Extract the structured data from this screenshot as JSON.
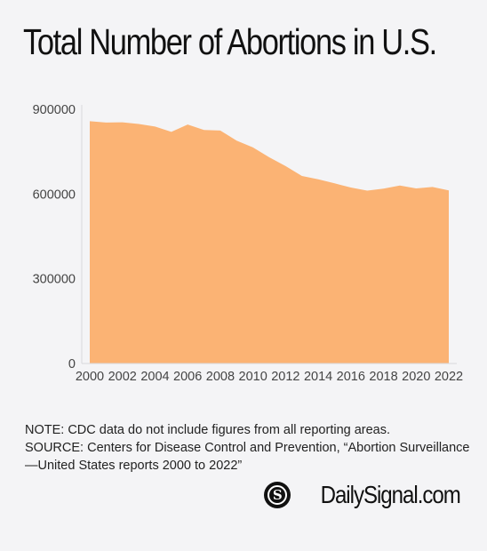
{
  "title": "Total Number of Abortions in U.S.",
  "colors": {
    "fill": "#fbb374",
    "background": "#f4f4f6",
    "text": "#111111"
  },
  "chart_data": {
    "type": "area",
    "title": "Total Number of Abortions in U.S.",
    "xlabel": "",
    "ylabel": "",
    "ylim": [
      0,
      900000
    ],
    "y_ticks": [
      "0",
      "300000",
      "600000",
      "900000"
    ],
    "x_ticks": [
      "2000",
      "2002",
      "2004",
      "2006",
      "2008",
      "2010",
      "2012",
      "2014",
      "2016",
      "2018",
      "2020",
      "2022"
    ],
    "grid": false,
    "legend": "none",
    "x": [
      2000,
      2001,
      2002,
      2003,
      2004,
      2005,
      2006,
      2007,
      2008,
      2009,
      2010,
      2011,
      2012,
      2013,
      2014,
      2015,
      2016,
      2017,
      2018,
      2019,
      2020,
      2021,
      2022
    ],
    "values": [
      858000,
      853000,
      854000,
      848000,
      839000,
      820000,
      846000,
      827000,
      825000,
      789000,
      765000,
      730000,
      699000,
      664000,
      652000,
      638000,
      623000,
      612000,
      619000,
      630000,
      620000,
      625000,
      613000
    ]
  },
  "notes": {
    "note": "NOTE: CDC data do not include figures from all reporting areas.",
    "source_line1": "SOURCE: Centers for Disease Control and Prevention, “Abortion Surveillance",
    "source_line2": "—United States reports 2000 to 2022”"
  },
  "brand": {
    "name": "DailySignal.com",
    "icon": "daily-signal-logo-icon",
    "logo_letter": "S"
  }
}
